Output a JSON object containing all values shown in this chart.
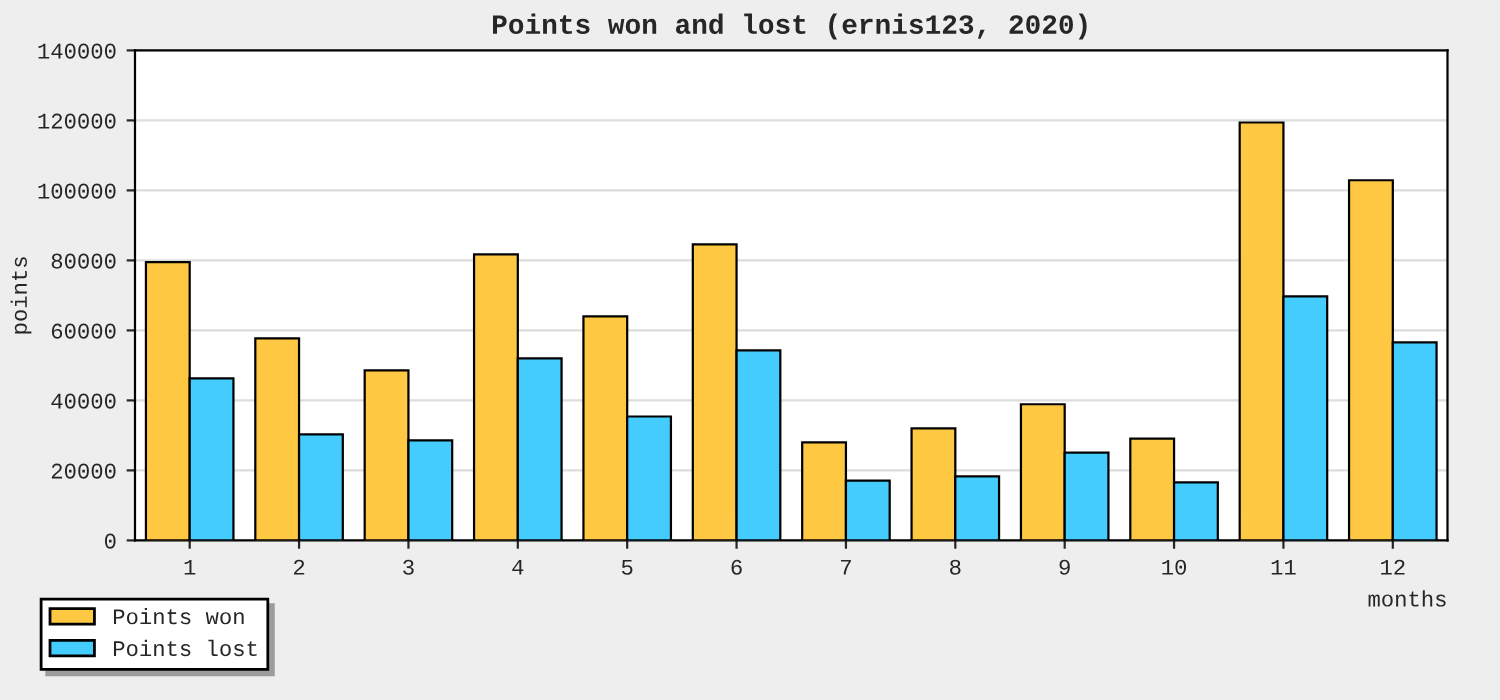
{
  "chart_data": {
    "type": "bar",
    "title": "Points won and lost (ernis123, 2020)",
    "xlabel": "months",
    "ylabel": "points",
    "categories": [
      "1",
      "2",
      "3",
      "4",
      "5",
      "6",
      "7",
      "8",
      "9",
      "10",
      "11",
      "12"
    ],
    "series": [
      {
        "name": "Points won",
        "color": "#ffc843",
        "values": [
          79500,
          57700,
          48600,
          81700,
          64000,
          84600,
          28000,
          32000,
          38900,
          29100,
          119400,
          102900
        ]
      },
      {
        "name": "Points lost",
        "color": "#44ccff",
        "values": [
          46300,
          30300,
          28600,
          52000,
          35400,
          54300,
          17100,
          18300,
          25100,
          16600,
          69700,
          56600
        ]
      }
    ],
    "ylim": [
      0,
      140000
    ],
    "yticks": [
      0,
      20000,
      40000,
      60000,
      80000,
      100000,
      120000,
      140000
    ],
    "grid": "y",
    "legend": "bottom left"
  }
}
